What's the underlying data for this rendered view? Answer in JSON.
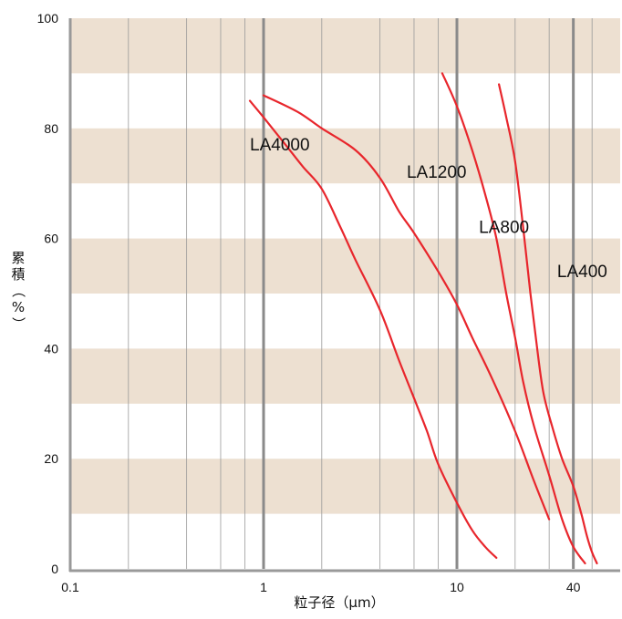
{
  "chart_data": {
    "type": "line",
    "xscale": "log",
    "xlim": [
      0.1,
      50
    ],
    "ylim": [
      0,
      100
    ],
    "xlabel": "粒子径（μm）",
    "ylabel": "累積（%）",
    "xticks": [
      {
        "value": 0.1,
        "label": "0.1"
      },
      {
        "value": 1,
        "label": "1"
      },
      {
        "value": 10,
        "label": "10"
      },
      {
        "value": 40,
        "label": "40"
      }
    ],
    "yticks": [
      {
        "value": 0,
        "label": "0"
      },
      {
        "value": 20,
        "label": "20"
      },
      {
        "value": 40,
        "label": "40"
      },
      {
        "value": 60,
        "label": "60"
      },
      {
        "value": 80,
        "label": "80"
      },
      {
        "value": 100,
        "label": "100"
      }
    ],
    "series": [
      {
        "name": "LA4000",
        "label_at": [
          0.85,
          76
        ],
        "points": [
          [
            0.85,
            85
          ],
          [
            1.0,
            82
          ],
          [
            1.3,
            77
          ],
          [
            1.6,
            73
          ],
          [
            2.0,
            69
          ],
          [
            2.5,
            62
          ],
          [
            3.0,
            56
          ],
          [
            4.0,
            47
          ],
          [
            5.0,
            38
          ],
          [
            6.0,
            31
          ],
          [
            7.0,
            25
          ],
          [
            8.0,
            19
          ],
          [
            10.0,
            12
          ],
          [
            12.0,
            7
          ],
          [
            14.0,
            4
          ],
          [
            16.0,
            2
          ]
        ]
      },
      {
        "name": "LA1200",
        "label_at": [
          5.5,
          71
        ],
        "points": [
          [
            1.0,
            86
          ],
          [
            1.5,
            83
          ],
          [
            2.0,
            80
          ],
          [
            3.0,
            76
          ],
          [
            4.0,
            71
          ],
          [
            5.0,
            65
          ],
          [
            6.0,
            61
          ],
          [
            8.0,
            54
          ],
          [
            10.0,
            48
          ],
          [
            12.0,
            42
          ],
          [
            15.0,
            35
          ],
          [
            20.0,
            25
          ],
          [
            25.0,
            16
          ],
          [
            30.0,
            9
          ]
        ]
      },
      {
        "name": "LA800",
        "label_at": [
          13.0,
          61
        ],
        "points": [
          [
            8.4,
            90
          ],
          [
            10.0,
            84
          ],
          [
            12.0,
            76
          ],
          [
            14.0,
            68
          ],
          [
            16.0,
            60
          ],
          [
            18.0,
            50
          ],
          [
            20.0,
            42
          ],
          [
            22.0,
            34
          ],
          [
            25.0,
            26
          ],
          [
            30.0,
            17
          ],
          [
            35.0,
            9
          ],
          [
            40.0,
            4
          ],
          [
            46.0,
            1
          ]
        ]
      },
      {
        "name": "LA400",
        "label_at": [
          33.0,
          53
        ],
        "points": [
          [
            16.5,
            88
          ],
          [
            18.0,
            82
          ],
          [
            20.0,
            74
          ],
          [
            22.0,
            62
          ],
          [
            24.0,
            50
          ],
          [
            26.0,
            40
          ],
          [
            28.0,
            32
          ],
          [
            31.0,
            26
          ],
          [
            35.0,
            20
          ],
          [
            40.0,
            15
          ],
          [
            44.0,
            10
          ],
          [
            47.0,
            6
          ],
          [
            50.0,
            3
          ],
          [
            53.0,
            1
          ]
        ]
      }
    ],
    "colors": {
      "band": "#ede0d1",
      "minor_grid": "#9a9a9a",
      "major_grid": "#8a8a8a",
      "axis": "#999999",
      "line": "#e8262c"
    },
    "grid": "minor vertical lines, major at 1/10/40, horizontal alternating bands"
  }
}
